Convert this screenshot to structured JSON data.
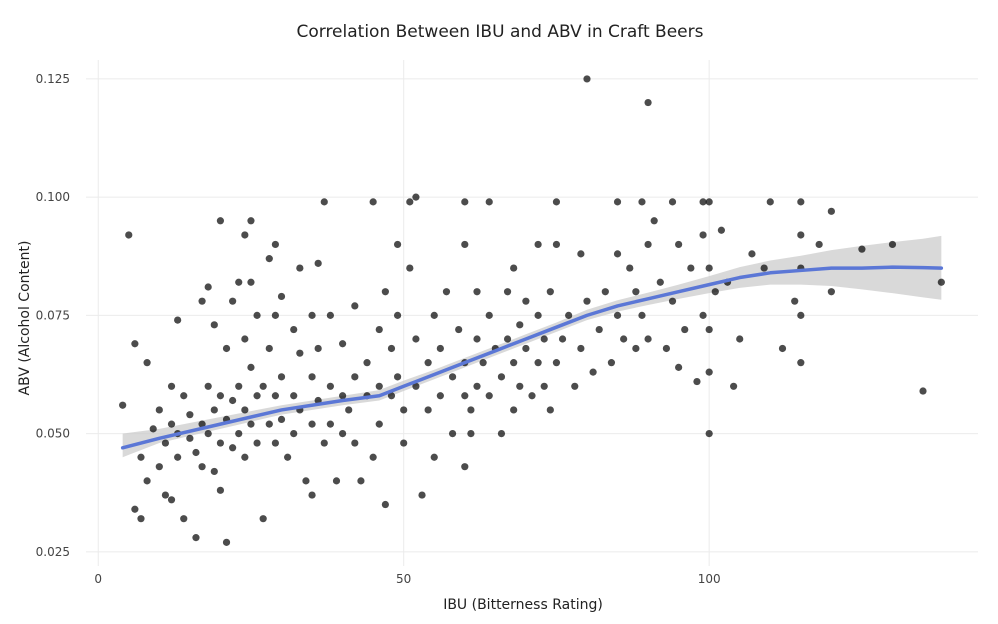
{
  "chart_data": {
    "type": "scatter",
    "title": "Correlation Between IBU and ABV in Craft Beers",
    "xlabel": "IBU (Bitterness Rating)",
    "ylabel": "ABV (Alcohol Content)",
    "xlim": [
      -2,
      144
    ],
    "ylim": [
      0.022,
      0.129
    ],
    "x_ticks": [
      0,
      50,
      100
    ],
    "y_ticks": [
      0.025,
      0.05,
      0.075,
      0.1,
      0.125
    ],
    "x_tick_labels": [
      "0",
      "50",
      "100"
    ],
    "y_tick_labels": [
      "0.025",
      "0.050",
      "0.075",
      "0.100",
      "0.125"
    ],
    "grid": true,
    "legend": "none",
    "colors": {
      "points": "#000000",
      "smooth_line": "#5b77d6",
      "confidence_band": "#cccccc"
    },
    "series": [
      {
        "points": [
          [
            4,
            0.056
          ],
          [
            5,
            0.092
          ],
          [
            6,
            0.034
          ],
          [
            6,
            0.069
          ],
          [
            7,
            0.032
          ],
          [
            7,
            0.045
          ],
          [
            8,
            0.04
          ],
          [
            8,
            0.065
          ],
          [
            9,
            0.051
          ],
          [
            10,
            0.043
          ],
          [
            10,
            0.055
          ],
          [
            11,
            0.048
          ],
          [
            11,
            0.037
          ],
          [
            12,
            0.052
          ],
          [
            12,
            0.06
          ],
          [
            12,
            0.036
          ],
          [
            13,
            0.074
          ],
          [
            13,
            0.05
          ],
          [
            13,
            0.045
          ],
          [
            14,
            0.032
          ],
          [
            14,
            0.058
          ],
          [
            15,
            0.054
          ],
          [
            15,
            0.049
          ],
          [
            16,
            0.028
          ],
          [
            16,
            0.046
          ],
          [
            17,
            0.078
          ],
          [
            17,
            0.052
          ],
          [
            17,
            0.043
          ],
          [
            18,
            0.081
          ],
          [
            18,
            0.06
          ],
          [
            18,
            0.05
          ],
          [
            19,
            0.073
          ],
          [
            19,
            0.055
          ],
          [
            19,
            0.042
          ],
          [
            20,
            0.095
          ],
          [
            20,
            0.058
          ],
          [
            20,
            0.048
          ],
          [
            20,
            0.038
          ],
          [
            21,
            0.068
          ],
          [
            21,
            0.053
          ],
          [
            21,
            0.027
          ],
          [
            22,
            0.078
          ],
          [
            22,
            0.057
          ],
          [
            22,
            0.047
          ],
          [
            23,
            0.082
          ],
          [
            23,
            0.06
          ],
          [
            23,
            0.05
          ],
          [
            24,
            0.092
          ],
          [
            24,
            0.07
          ],
          [
            24,
            0.055
          ],
          [
            24,
            0.045
          ],
          [
            25,
            0.095
          ],
          [
            25,
            0.082
          ],
          [
            25,
            0.064
          ],
          [
            25,
            0.052
          ],
          [
            26,
            0.075
          ],
          [
            26,
            0.058
          ],
          [
            26,
            0.048
          ],
          [
            27,
            0.032
          ],
          [
            27,
            0.06
          ],
          [
            28,
            0.087
          ],
          [
            28,
            0.068
          ],
          [
            28,
            0.052
          ],
          [
            29,
            0.09
          ],
          [
            29,
            0.075
          ],
          [
            29,
            0.058
          ],
          [
            29,
            0.048
          ],
          [
            30,
            0.079
          ],
          [
            30,
            0.062
          ],
          [
            30,
            0.053
          ],
          [
            31,
            0.045
          ],
          [
            32,
            0.072
          ],
          [
            32,
            0.058
          ],
          [
            32,
            0.05
          ],
          [
            33,
            0.085
          ],
          [
            33,
            0.067
          ],
          [
            33,
            0.055
          ],
          [
            34,
            0.04
          ],
          [
            35,
            0.075
          ],
          [
            35,
            0.062
          ],
          [
            35,
            0.052
          ],
          [
            35,
            0.037
          ],
          [
            36,
            0.086
          ],
          [
            36,
            0.068
          ],
          [
            36,
            0.057
          ],
          [
            37,
            0.048
          ],
          [
            37,
            0.099
          ],
          [
            38,
            0.075
          ],
          [
            38,
            0.06
          ],
          [
            38,
            0.052
          ],
          [
            39,
            0.04
          ],
          [
            40,
            0.069
          ],
          [
            40,
            0.058
          ],
          [
            40,
            0.05
          ],
          [
            41,
            0.055
          ],
          [
            42,
            0.077
          ],
          [
            42,
            0.062
          ],
          [
            42,
            0.048
          ],
          [
            43,
            0.04
          ],
          [
            44,
            0.065
          ],
          [
            44,
            0.058
          ],
          [
            45,
            0.099
          ],
          [
            45,
            0.045
          ],
          [
            46,
            0.072
          ],
          [
            46,
            0.06
          ],
          [
            46,
            0.052
          ],
          [
            47,
            0.035
          ],
          [
            47,
            0.08
          ],
          [
            48,
            0.068
          ],
          [
            48,
            0.058
          ],
          [
            49,
            0.09
          ],
          [
            49,
            0.075
          ],
          [
            49,
            0.062
          ],
          [
            50,
            0.055
          ],
          [
            50,
            0.048
          ],
          [
            51,
            0.085
          ],
          [
            51,
            0.099
          ],
          [
            52,
            0.1
          ],
          [
            52,
            0.07
          ],
          [
            52,
            0.06
          ],
          [
            53,
            0.037
          ],
          [
            54,
            0.065
          ],
          [
            54,
            0.055
          ],
          [
            55,
            0.075
          ],
          [
            55,
            0.045
          ],
          [
            56,
            0.068
          ],
          [
            56,
            0.058
          ],
          [
            57,
            0.08
          ],
          [
            58,
            0.062
          ],
          [
            58,
            0.05
          ],
          [
            59,
            0.072
          ],
          [
            60,
            0.099
          ],
          [
            60,
            0.09
          ],
          [
            60,
            0.065
          ],
          [
            60,
            0.058
          ],
          [
            60,
            0.043
          ],
          [
            61,
            0.055
          ],
          [
            61,
            0.05
          ],
          [
            62,
            0.08
          ],
          [
            62,
            0.07
          ],
          [
            62,
            0.06
          ],
          [
            63,
            0.065
          ],
          [
            64,
            0.099
          ],
          [
            64,
            0.075
          ],
          [
            64,
            0.058
          ],
          [
            65,
            0.068
          ],
          [
            66,
            0.062
          ],
          [
            66,
            0.05
          ],
          [
            67,
            0.08
          ],
          [
            67,
            0.07
          ],
          [
            68,
            0.085
          ],
          [
            68,
            0.065
          ],
          [
            68,
            0.055
          ],
          [
            69,
            0.073
          ],
          [
            69,
            0.06
          ],
          [
            70,
            0.078
          ],
          [
            70,
            0.068
          ],
          [
            71,
            0.058
          ],
          [
            72,
            0.09
          ],
          [
            72,
            0.075
          ],
          [
            72,
            0.065
          ],
          [
            73,
            0.07
          ],
          [
            73,
            0.06
          ],
          [
            74,
            0.08
          ],
          [
            74,
            0.055
          ],
          [
            75,
            0.099
          ],
          [
            75,
            0.09
          ],
          [
            75,
            0.065
          ],
          [
            76,
            0.07
          ],
          [
            77,
            0.075
          ],
          [
            78,
            0.06
          ],
          [
            79,
            0.088
          ],
          [
            79,
            0.068
          ],
          [
            80,
            0.125
          ],
          [
            80,
            0.078
          ],
          [
            81,
            0.063
          ],
          [
            82,
            0.072
          ],
          [
            83,
            0.08
          ],
          [
            84,
            0.065
          ],
          [
            85,
            0.099
          ],
          [
            85,
            0.088
          ],
          [
            85,
            0.075
          ],
          [
            86,
            0.07
          ],
          [
            87,
            0.085
          ],
          [
            88,
            0.08
          ],
          [
            88,
            0.068
          ],
          [
            89,
            0.099
          ],
          [
            89,
            0.075
          ],
          [
            90,
            0.12
          ],
          [
            90,
            0.09
          ],
          [
            90,
            0.07
          ],
          [
            91,
            0.095
          ],
          [
            92,
            0.082
          ],
          [
            93,
            0.068
          ],
          [
            94,
            0.099
          ],
          [
            94,
            0.078
          ],
          [
            95,
            0.09
          ],
          [
            95,
            0.064
          ],
          [
            96,
            0.072
          ],
          [
            97,
            0.085
          ],
          [
            98,
            0.061
          ],
          [
            99,
            0.099
          ],
          [
            99,
            0.092
          ],
          [
            99,
            0.075
          ],
          [
            100,
            0.099
          ],
          [
            100,
            0.085
          ],
          [
            100,
            0.072
          ],
          [
            100,
            0.063
          ],
          [
            100,
            0.05
          ],
          [
            101,
            0.08
          ],
          [
            102,
            0.093
          ],
          [
            103,
            0.082
          ],
          [
            104,
            0.06
          ],
          [
            105,
            0.07
          ],
          [
            107,
            0.088
          ],
          [
            109,
            0.085
          ],
          [
            110,
            0.099
          ],
          [
            112,
            0.068
          ],
          [
            114,
            0.078
          ],
          [
            115,
            0.099
          ],
          [
            115,
            0.092
          ],
          [
            115,
            0.085
          ],
          [
            115,
            0.075
          ],
          [
            115,
            0.065
          ],
          [
            118,
            0.09
          ],
          [
            120,
            0.097
          ],
          [
            120,
            0.08
          ],
          [
            125,
            0.089
          ],
          [
            130,
            0.09
          ],
          [
            135,
            0.059
          ],
          [
            138,
            0.082
          ]
        ]
      },
      {
        "name": "",
        "kind": "loess-smooth",
        "x": [
          4,
          10,
          20,
          30,
          40,
          46,
          50,
          55,
          60,
          65,
          70,
          75,
          80,
          85,
          90,
          95,
          100,
          105,
          110,
          115,
          120,
          125,
          130,
          135,
          138
        ],
        "y": [
          0.047,
          0.049,
          0.052,
          0.055,
          0.057,
          0.058,
          0.06,
          0.0625,
          0.065,
          0.0675,
          0.07,
          0.0725,
          0.075,
          0.077,
          0.0785,
          0.08,
          0.0815,
          0.083,
          0.084,
          0.0845,
          0.085,
          0.085,
          0.0852,
          0.0851,
          0.085
        ],
        "ci_low": [
          0.045,
          0.048,
          0.051,
          0.054,
          0.056,
          0.057,
          0.059,
          0.0615,
          0.064,
          0.0665,
          0.069,
          0.0715,
          0.074,
          0.0758,
          0.0772,
          0.0785,
          0.0797,
          0.0808,
          0.0815,
          0.0815,
          0.0812,
          0.0805,
          0.0797,
          0.0788,
          0.0783
        ],
        "ci_high": [
          0.05,
          0.051,
          0.0535,
          0.056,
          0.058,
          0.0592,
          0.0612,
          0.0635,
          0.066,
          0.0685,
          0.071,
          0.0735,
          0.0762,
          0.0782,
          0.0798,
          0.0815,
          0.0833,
          0.0852,
          0.0866,
          0.0876,
          0.0888,
          0.0897,
          0.0905,
          0.0912,
          0.0918
        ]
      }
    ]
  }
}
